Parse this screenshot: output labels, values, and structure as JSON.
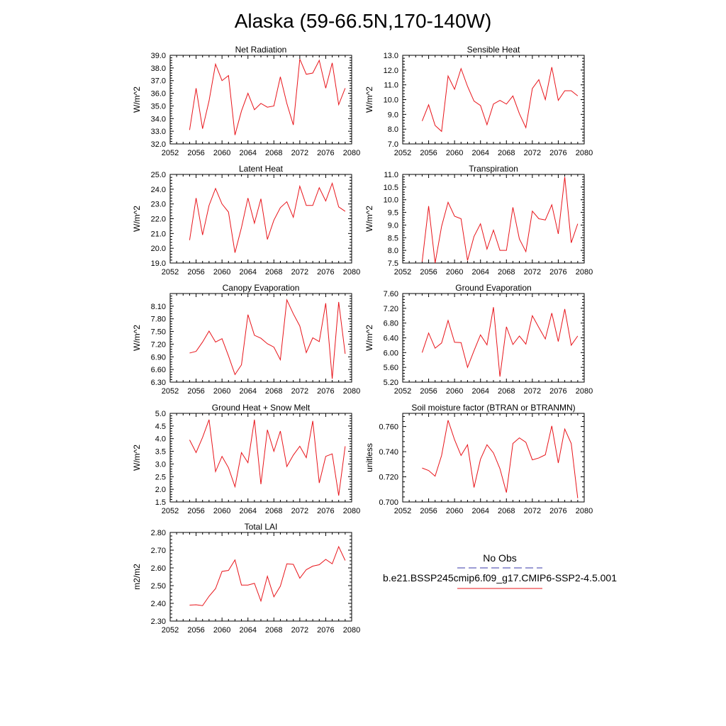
{
  "title": "Alaska (59-66.5N,170-140W)",
  "colors": {
    "model_line": "#e8141a",
    "obs_line": "#3a3aa8",
    "axis": "#000000"
  },
  "legend": {
    "obs_label": "No Obs",
    "model_label": "b.e21.BSSP245cmip6.f09_g17.CMIP6-SSP2-4.5.001"
  },
  "chart_data": [
    {
      "type": "line",
      "title": "Net Radiation",
      "ylabel": "W/m^2",
      "xlim": [
        2052,
        2080
      ],
      "xticks": [
        "2052",
        "2056",
        "2060",
        "2064",
        "2068",
        "2072",
        "2076",
        "2080"
      ],
      "ylim": [
        32.0,
        39.0
      ],
      "yticks": [
        "32.0",
        "33.0",
        "34.0",
        "35.0",
        "36.0",
        "37.0",
        "38.0",
        "39.0"
      ],
      "x": [
        2055,
        2056,
        2057,
        2058,
        2059,
        2060,
        2061,
        2062,
        2063,
        2064,
        2065,
        2066,
        2067,
        2068,
        2069,
        2070,
        2071,
        2072,
        2073,
        2074,
        2075,
        2076,
        2077,
        2078,
        2079
      ],
      "values": [
        33.1,
        36.4,
        33.2,
        35.4,
        38.3,
        37.0,
        37.4,
        32.7,
        34.6,
        36.0,
        34.7,
        35.2,
        34.9,
        35.0,
        37.3,
        35.2,
        33.5,
        38.7,
        37.5,
        37.6,
        38.6,
        36.4,
        38.4,
        35.1,
        36.4
      ]
    },
    {
      "type": "line",
      "title": "Sensible Heat",
      "ylabel": "W/m^2",
      "xlim": [
        2052,
        2080
      ],
      "xticks": [
        "2052",
        "2056",
        "2060",
        "2064",
        "2068",
        "2072",
        "2076",
        "2080"
      ],
      "ylim": [
        7.0,
        13.0
      ],
      "yticks": [
        "7.0",
        "8.0",
        "9.0",
        "10.0",
        "11.0",
        "12.0",
        "13.0"
      ],
      "x": [
        2055,
        2056,
        2057,
        2058,
        2059,
        2060,
        2061,
        2062,
        2063,
        2064,
        2065,
        2066,
        2067,
        2068,
        2069,
        2070,
        2071,
        2072,
        2073,
        2074,
        2075,
        2076,
        2077,
        2078,
        2079
      ],
      "values": [
        8.55,
        9.65,
        8.25,
        7.85,
        11.6,
        10.7,
        12.1,
        10.9,
        9.9,
        9.6,
        8.3,
        9.7,
        9.95,
        9.7,
        10.25,
        9.05,
        8.1,
        10.75,
        11.35,
        10.0,
        12.2,
        9.95,
        10.6,
        10.6,
        10.25
      ]
    },
    {
      "type": "line",
      "title": "Latent Heat",
      "ylabel": "W/m^2",
      "xlim": [
        2052,
        2080
      ],
      "xticks": [
        "2052",
        "2056",
        "2060",
        "2064",
        "2068",
        "2072",
        "2076",
        "2080"
      ],
      "ylim": [
        19.0,
        25.0
      ],
      "yticks": [
        "19.0",
        "20.0",
        "21.0",
        "22.0",
        "23.0",
        "24.0",
        "25.0"
      ],
      "x": [
        2055,
        2056,
        2057,
        2058,
        2059,
        2060,
        2061,
        2062,
        2063,
        2064,
        2065,
        2066,
        2067,
        2068,
        2069,
        2070,
        2071,
        2072,
        2073,
        2074,
        2075,
        2076,
        2077,
        2078,
        2079
      ],
      "values": [
        20.55,
        23.4,
        20.9,
        22.9,
        24.05,
        23.0,
        22.45,
        19.7,
        21.4,
        23.4,
        21.7,
        23.35,
        20.6,
        21.9,
        22.75,
        23.15,
        22.1,
        24.2,
        22.9,
        22.9,
        24.1,
        23.2,
        24.4,
        22.8,
        22.5
      ]
    },
    {
      "type": "line",
      "title": "Transpiration",
      "ylabel": "W/m^2",
      "xlim": [
        2052,
        2080
      ],
      "xticks": [
        "2052",
        "2056",
        "2060",
        "2064",
        "2068",
        "2072",
        "2076",
        "2080"
      ],
      "ylim": [
        7.5,
        11.0
      ],
      "yticks": [
        "7.5",
        "8.0",
        "8.5",
        "9.0",
        "9.5",
        "10.0",
        "10.5",
        "11.0"
      ],
      "x": [
        2055,
        2056,
        2057,
        2058,
        2059,
        2060,
        2061,
        2062,
        2063,
        2064,
        2065,
        2066,
        2067,
        2068,
        2069,
        2070,
        2071,
        2072,
        2073,
        2074,
        2075,
        2076,
        2077,
        2078,
        2079
      ],
      "values": [
        7.55,
        9.75,
        7.5,
        8.95,
        9.9,
        9.35,
        9.25,
        7.6,
        8.55,
        9.05,
        8.05,
        8.8,
        8.0,
        8.0,
        9.7,
        8.45,
        7.95,
        9.55,
        9.25,
        9.2,
        9.8,
        8.65,
        10.9,
        8.3,
        9.05
      ]
    },
    {
      "type": "line",
      "title": "Canopy Evaporation",
      "ylabel": "W/m^2",
      "xlim": [
        2052,
        2080
      ],
      "xticks": [
        "2052",
        "2056",
        "2060",
        "2064",
        "2068",
        "2072",
        "2076",
        "2080"
      ],
      "ylim": [
        6.3,
        8.4
      ],
      "yticks": [
        "6.30",
        "6.60",
        "6.90",
        "7.20",
        "7.50",
        "7.80",
        "8.10"
      ],
      "x": [
        2055,
        2056,
        2057,
        2058,
        2059,
        2060,
        2061,
        2062,
        2063,
        2064,
        2065,
        2066,
        2067,
        2068,
        2069,
        2070,
        2071,
        2072,
        2073,
        2074,
        2075,
        2076,
        2077,
        2078,
        2079
      ],
      "values": [
        6.99,
        7.03,
        7.25,
        7.51,
        7.25,
        7.33,
        6.92,
        6.48,
        6.71,
        7.9,
        7.41,
        7.34,
        7.21,
        7.13,
        6.83,
        8.25,
        7.92,
        7.63,
        7.0,
        7.35,
        7.26,
        8.17,
        6.38,
        8.2,
        6.97
      ]
    },
    {
      "type": "line",
      "title": "Ground Evaporation",
      "ylabel": "W/m^2",
      "xlim": [
        2052,
        2080
      ],
      "xticks": [
        "2052",
        "2056",
        "2060",
        "2064",
        "2068",
        "2072",
        "2076",
        "2080"
      ],
      "ylim": [
        5.2,
        7.6
      ],
      "yticks": [
        "5.20",
        "5.60",
        "6.00",
        "6.40",
        "6.80",
        "7.20",
        "7.60"
      ],
      "x": [
        2055,
        2056,
        2057,
        2058,
        2059,
        2060,
        2061,
        2062,
        2063,
        2064,
        2065,
        2066,
        2067,
        2068,
        2069,
        2070,
        2071,
        2072,
        2073,
        2074,
        2075,
        2076,
        2077,
        2078,
        2079
      ],
      "values": [
        6.0,
        6.53,
        6.12,
        6.26,
        6.87,
        6.28,
        6.27,
        5.6,
        6.05,
        6.48,
        6.21,
        7.23,
        5.35,
        6.7,
        6.22,
        6.45,
        6.23,
        7.0,
        6.68,
        6.37,
        7.07,
        6.3,
        7.18,
        6.2,
        6.45
      ]
    },
    {
      "type": "line",
      "title": "Ground Heat + Snow Melt",
      "ylabel": "W/m^2",
      "xlim": [
        2052,
        2080
      ],
      "xticks": [
        "2052",
        "2056",
        "2060",
        "2064",
        "2068",
        "2072",
        "2076",
        "2080"
      ],
      "ylim": [
        1.5,
        5.0
      ],
      "yticks": [
        "1.5",
        "2.0",
        "2.5",
        "3.0",
        "3.5",
        "4.0",
        "4.5",
        "5.0"
      ],
      "x": [
        2055,
        2056,
        2057,
        2058,
        2059,
        2060,
        2061,
        2062,
        2063,
        2064,
        2065,
        2066,
        2067,
        2068,
        2069,
        2070,
        2071,
        2072,
        2073,
        2074,
        2075,
        2076,
        2077,
        2078,
        2079
      ],
      "values": [
        3.95,
        3.45,
        4.05,
        4.75,
        2.7,
        3.3,
        2.85,
        2.1,
        3.45,
        3.05,
        4.75,
        2.2,
        4.35,
        3.5,
        4.3,
        2.9,
        3.35,
        3.7,
        3.25,
        4.7,
        2.25,
        3.3,
        3.4,
        1.75,
        3.7
      ]
    },
    {
      "type": "line",
      "title": "Soil moisture factor (BTRAN or BTRANMN)",
      "ylabel": "unitless",
      "xlim": [
        2052,
        2080
      ],
      "xticks": [
        "2052",
        "2056",
        "2060",
        "2064",
        "2068",
        "2072",
        "2076",
        "2080"
      ],
      "ylim": [
        0.7,
        0.7705
      ],
      "yticks": [
        "0.700",
        "0.720",
        "0.740",
        "0.760"
      ],
      "x": [
        2055,
        2056,
        2057,
        2058,
        2059,
        2060,
        2061,
        2062,
        2063,
        2064,
        2065,
        2066,
        2067,
        2068,
        2069,
        2070,
        2071,
        2072,
        2073,
        2074,
        2075,
        2076,
        2077,
        2078,
        2079
      ],
      "values": [
        0.727,
        0.725,
        0.7205,
        0.737,
        0.765,
        0.7495,
        0.737,
        0.7455,
        0.7115,
        0.734,
        0.7455,
        0.739,
        0.7265,
        0.7075,
        0.7465,
        0.751,
        0.7475,
        0.7335,
        0.735,
        0.7375,
        0.7605,
        0.731,
        0.758,
        0.7465,
        0.703
      ]
    },
    {
      "type": "line",
      "title": "Total LAI",
      "ylabel": "m2/m2",
      "xlim": [
        2052,
        2080
      ],
      "xticks": [
        "2052",
        "2056",
        "2060",
        "2064",
        "2068",
        "2072",
        "2076",
        "2080"
      ],
      "ylim": [
        2.3,
        2.8
      ],
      "yticks": [
        "2.30",
        "2.40",
        "2.50",
        "2.60",
        "2.70",
        "2.80"
      ],
      "x": [
        2055,
        2056,
        2057,
        2058,
        2059,
        2060,
        2061,
        2062,
        2063,
        2064,
        2065,
        2066,
        2067,
        2068,
        2069,
        2070,
        2071,
        2072,
        2073,
        2074,
        2075,
        2076,
        2077,
        2078,
        2079
      ],
      "values": [
        2.39,
        2.392,
        2.387,
        2.44,
        2.483,
        2.58,
        2.586,
        2.645,
        2.503,
        2.503,
        2.513,
        2.413,
        2.553,
        2.437,
        2.497,
        2.623,
        2.62,
        2.542,
        2.59,
        2.61,
        2.618,
        2.648,
        2.623,
        2.72,
        2.642
      ]
    }
  ]
}
